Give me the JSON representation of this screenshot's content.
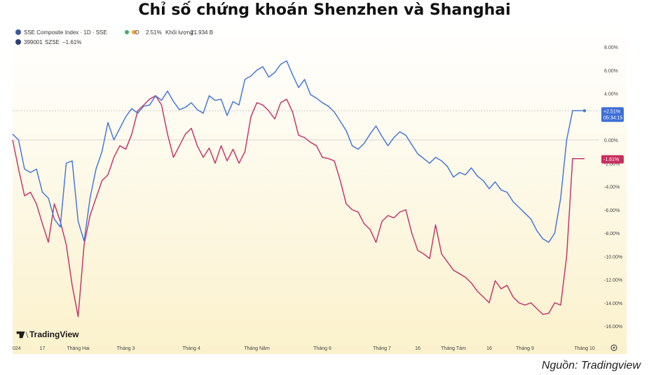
{
  "title": "Chỉ số chứng khoán Shenzhen và Shanghai",
  "source": "Nguồn: Tradingview",
  "legend": {
    "sse_name": "SSE Composite Index · 1D · SSE",
    "sse_dot": "D",
    "sse_change": "2.51%",
    "sse_volume_label": "Khối lượng",
    "sse_volume": "21.934 B",
    "szse_code": "399001",
    "szse_exchange": "SZSE",
    "szse_change": "−1.61%"
  },
  "brand": "TradingView",
  "colors": {
    "sse": "#4a78d8",
    "szse": "#c23a6e",
    "sse_badge": "#3d6fd6",
    "szse_badge": "#c8305f"
  },
  "chart_data": {
    "type": "line",
    "ylim": [
      -16.5,
      8.5
    ],
    "y_ticks": [
      8,
      6,
      4,
      2,
      0,
      -2,
      -4,
      -6,
      -8,
      -10,
      -12,
      -14,
      -16
    ],
    "y_tick_labels": [
      "8.00%",
      "6.00%",
      "4.00%",
      "2.00%",
      "0.00%",
      "-2.00%",
      "-4.00%",
      "-6.00%",
      "-8.00%",
      "-10.00%",
      "-12.00%",
      "-14.00%",
      "-16.00%"
    ],
    "x_tick_labels": [
      "024",
      "17",
      "Tháng Hai",
      "Tháng 3",
      "Tháng 4",
      "Tháng Năm",
      "Tháng 6",
      "Tháng 7",
      "16",
      "Tháng Tám",
      "16",
      "Tháng 9",
      "Tháng 10"
    ],
    "x_tick_positions": [
      0,
      2.5,
      5.5,
      9.5,
      15,
      20.5,
      26,
      31,
      34,
      37,
      40,
      43,
      48
    ],
    "xlim": [
      0,
      50
    ],
    "dashed_reference": 2.51,
    "badges": [
      {
        "series": "SSE",
        "lines": [
          "+2.51%",
          "05:34:15"
        ],
        "value": 2.51
      },
      {
        "series": "SZSE",
        "lines": [
          "-1.61%"
        ],
        "value": -1.61
      }
    ],
    "series": [
      {
        "name": "SSE",
        "x": [
          0,
          0.5,
          1,
          1.5,
          2,
          2.5,
          3,
          3.5,
          4,
          4.5,
          5,
          5.5,
          6,
          6.5,
          7,
          7.5,
          8,
          8.5,
          9,
          9.5,
          10,
          10.5,
          11,
          11.5,
          12,
          12.5,
          13,
          13.5,
          14,
          14.5,
          15,
          15.5,
          16,
          16.5,
          17,
          17.5,
          18,
          18.5,
          19,
          19.5,
          20,
          20.5,
          21,
          21.5,
          22,
          22.5,
          23,
          23.5,
          24,
          24.5,
          25,
          25.5,
          26,
          26.5,
          27,
          27.5,
          28,
          28.5,
          29,
          29.5,
          30,
          30.5,
          31,
          31.5,
          32,
          32.5,
          33,
          33.5,
          34,
          34.5,
          35,
          35.5,
          36,
          36.5,
          37,
          37.5,
          38,
          38.5,
          39,
          39.5,
          40,
          40.5,
          41,
          41.5,
          42,
          42.5,
          43,
          43.5,
          44,
          44.5,
          45,
          45.5,
          46,
          46.5,
          47,
          47.5,
          48
        ],
        "values": [
          0.5,
          0,
          -2.5,
          -2.8,
          -2.5,
          -4.5,
          -5,
          -6.8,
          -7.5,
          -2,
          -1.8,
          -7,
          -8.7,
          -5,
          -2.5,
          -1,
          1.5,
          0,
          1,
          2,
          2.7,
          2.3,
          2.9,
          3,
          3.8,
          3.4,
          4.2,
          3.3,
          2.6,
          2.8,
          3.2,
          2.6,
          2.3,
          3.8,
          3.4,
          3.5,
          2.1,
          3.3,
          3,
          5.2,
          5.5,
          6,
          6.3,
          5.4,
          5.8,
          6.5,
          6.8,
          5.6,
          4.5,
          5.2,
          3.9,
          3.6,
          3.2,
          2.9,
          2.4,
          1.6,
          0.8,
          -0.5,
          -0.8,
          -0.3,
          0.5,
          1.2,
          0.3,
          -0.5,
          0.2,
          0.7,
          0.4,
          -0.4,
          -1.2,
          -1.6,
          -2,
          -1.5,
          -1.8,
          -2.3,
          -3.2,
          -2.8,
          -3,
          -2.4,
          -3.1,
          -3.5,
          -4.2,
          -3.6,
          -4.3,
          -4.5,
          -5.3,
          -5.8,
          -6.3,
          -6.8,
          -7.8,
          -8.5,
          -8.8,
          -8,
          -5,
          0,
          2.51,
          2.51,
          2.51
        ],
        "color": "#4a78d8"
      },
      {
        "name": "SZSE",
        "x": [
          0,
          0.5,
          1,
          1.5,
          2,
          2.5,
          3,
          3.5,
          4,
          4.5,
          5,
          5.5,
          6,
          6.5,
          7,
          7.5,
          8,
          8.5,
          9,
          9.5,
          10,
          10.5,
          11,
          11.5,
          12,
          12.5,
          13,
          13.5,
          14,
          14.5,
          15,
          15.5,
          16,
          16.5,
          17,
          17.5,
          18,
          18.5,
          19,
          19.5,
          20,
          20.5,
          21,
          21.5,
          22,
          22.5,
          23,
          23.5,
          24,
          24.5,
          25,
          25.5,
          26,
          26.5,
          27,
          27.5,
          28,
          28.5,
          29,
          29.5,
          30,
          30.5,
          31,
          31.5,
          32,
          32.5,
          33,
          33.5,
          34,
          34.5,
          35,
          35.5,
          36,
          36.5,
          37,
          37.5,
          38,
          38.5,
          39,
          39.5,
          40,
          40.5,
          41,
          41.5,
          42,
          42.5,
          43,
          43.5,
          44,
          44.5,
          45,
          45.5,
          46,
          46.5,
          47,
          47.5,
          48
        ],
        "values": [
          0,
          -2.5,
          -4.8,
          -4.5,
          -5.5,
          -7.2,
          -8.8,
          -5.5,
          -7,
          -9,
          -12.5,
          -15.2,
          -9,
          -6.5,
          -5,
          -3.5,
          -3,
          -1.5,
          -0.5,
          -0.8,
          0.5,
          2.5,
          3,
          3.5,
          3.8,
          3,
          0.5,
          -1.5,
          -0.5,
          0.5,
          1,
          -0.5,
          -1.5,
          -0.7,
          -2,
          -0.5,
          -1.8,
          -0.8,
          -2,
          -1,
          2,
          3.2,
          3,
          2.5,
          1.8,
          3.2,
          3.5,
          2.4,
          0.4,
          0.2,
          -0.2,
          -0.5,
          -1.5,
          -1.6,
          -1.8,
          -3.5,
          -5.5,
          -6,
          -6.2,
          -7.2,
          -7.7,
          -8.8,
          -7,
          -6.5,
          -6.7,
          -6.2,
          -6,
          -8,
          -9.5,
          -9.8,
          -10.2,
          -7.3,
          -9.8,
          -10.5,
          -11.2,
          -11.5,
          -11.8,
          -12.3,
          -13,
          -13.5,
          -14,
          -12.1,
          -12.8,
          -12.5,
          -13.5,
          -14,
          -14.2,
          -14,
          -14.5,
          -15,
          -14.9,
          -14,
          -14.2,
          -10,
          -1.61,
          -1.61,
          -1.61
        ],
        "color": "#c23a6e"
      }
    ]
  }
}
